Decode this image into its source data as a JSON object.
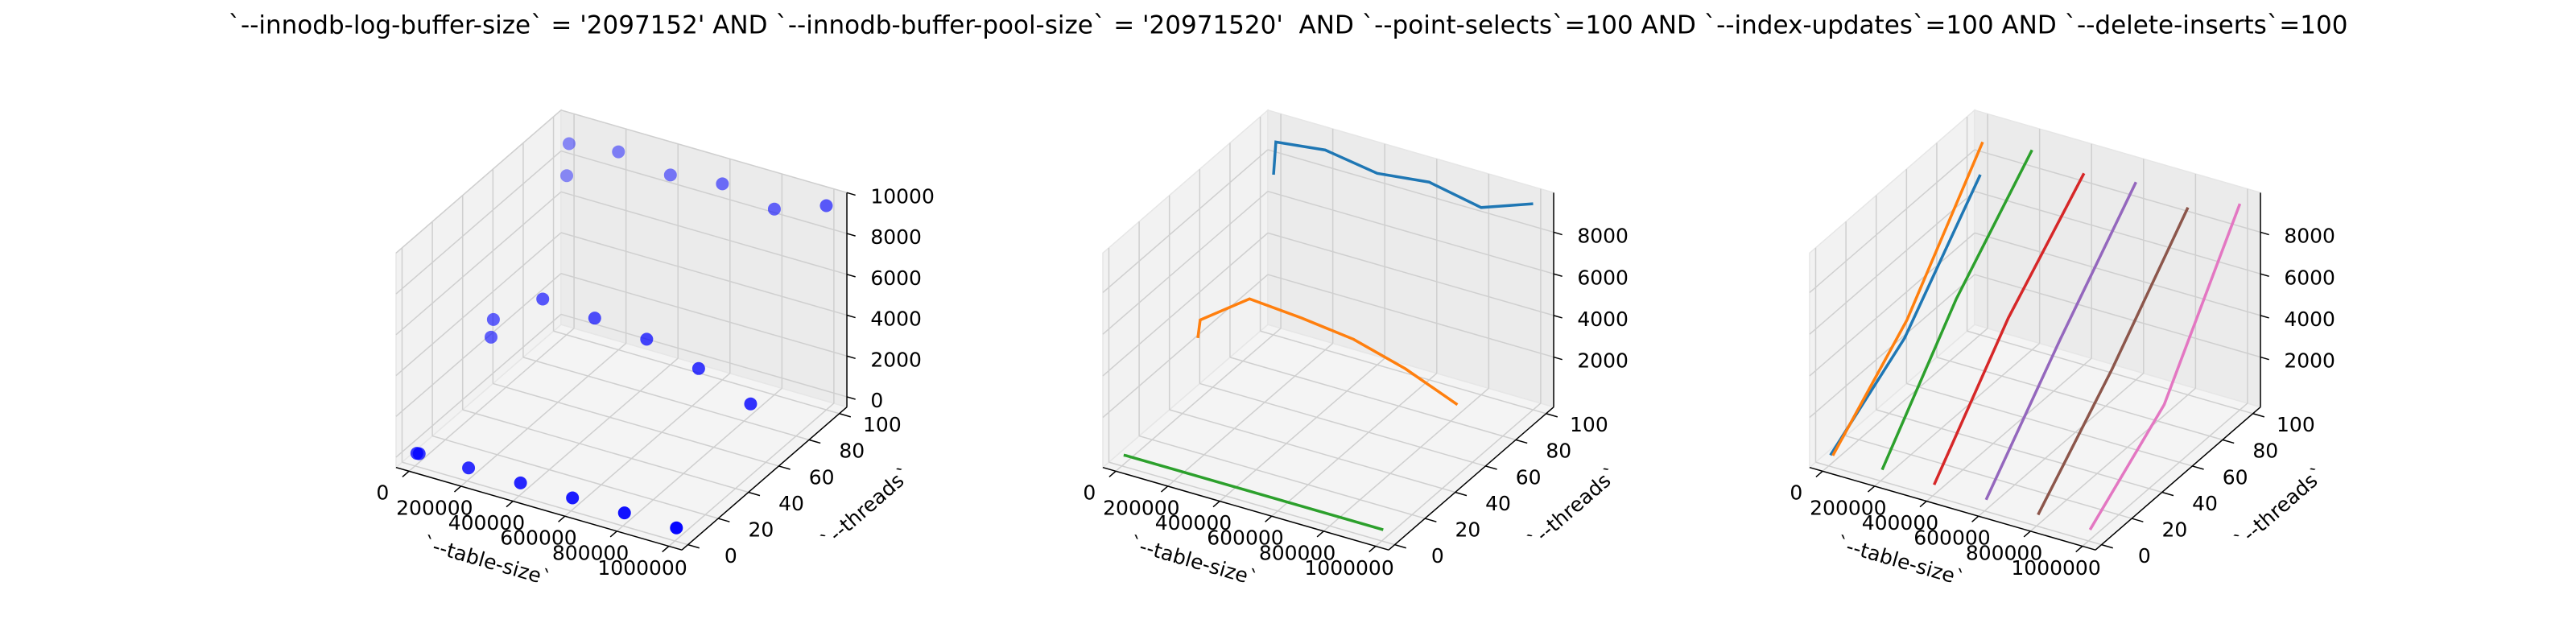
{
  "title": "`--innodb-log-buffer-size` = '2097152' AND `--innodb-buffer-pool-size` = '20971520'  AND `--point-selects`=100 AND `--index-updates`=100 AND `--delete-inserts`=100",
  "chart_data": [
    {
      "type": "scatter",
      "xlabel": "`--table-size`",
      "ylabel": "`--threads`",
      "color": "#0000ff",
      "x": [
        1000,
        10000,
        200000,
        400000,
        600000,
        800000,
        1000000,
        1000,
        10000,
        200000,
        400000,
        600000,
        800000,
        1000000,
        1000,
        10000,
        200000,
        400000,
        600000,
        800000,
        1000000
      ],
      "y": [
        1,
        1,
        1,
        1,
        1,
        1,
        1,
        50,
        50,
        50,
        50,
        50,
        50,
        50,
        100,
        100,
        100,
        100,
        100,
        100,
        100
      ],
      "z": [
        60,
        70,
        75,
        75,
        75,
        75,
        75,
        2600,
        3500,
        5200,
        5000,
        4700,
        4000,
        3000,
        7300,
        8900,
        9200,
        8800,
        9100,
        8600,
        9500
      ],
      "xlim": [
        -50000,
        1050000
      ],
      "ylim": [
        -4,
        105
      ],
      "zlim": [
        -500,
        10000
      ],
      "xticks": [
        0,
        200000,
        400000,
        600000,
        800000,
        1000000
      ],
      "yticks": [
        0,
        20,
        40,
        60,
        80,
        100
      ],
      "zticks": [
        0,
        2000,
        4000,
        6000,
        8000,
        10000
      ]
    },
    {
      "type": "line",
      "xlabel": "`--table-size`",
      "ylabel": "`--threads`",
      "series": [
        {
          "color": "#1f77b4",
          "x": [
            1000,
            10000,
            200000,
            400000,
            600000,
            800000,
            1000000
          ],
          "y": [
            100,
            100,
            100,
            100,
            100,
            100,
            100
          ],
          "z": [
            7300,
            8900,
            9200,
            8800,
            9100,
            8600,
            9500
          ]
        },
        {
          "color": "#ff7f0e",
          "x": [
            1000,
            10000,
            200000,
            400000,
            600000,
            800000,
            1000000
          ],
          "y": [
            50,
            50,
            50,
            50,
            50,
            50,
            50
          ],
          "z": [
            2600,
            3500,
            5200,
            5000,
            4700,
            4000,
            3000
          ]
        },
        {
          "color": "#2ca02c",
          "x": [
            1000,
            10000,
            200000,
            400000,
            600000,
            800000,
            1000000
          ],
          "y": [
            1,
            1,
            1,
            1,
            1,
            1,
            1
          ],
          "z": [
            60,
            70,
            75,
            75,
            75,
            75,
            75
          ]
        }
      ],
      "xlim": [
        -50000,
        1050000
      ],
      "ylim": [
        -4,
        105
      ],
      "zlim": [
        -400,
        9900
      ],
      "xticks": [
        0,
        200000,
        400000,
        600000,
        800000,
        1000000
      ],
      "yticks": [
        0,
        20,
        40,
        60,
        80,
        100
      ],
      "zticks": [
        2000,
        4000,
        6000,
        8000
      ]
    },
    {
      "type": "line",
      "xlabel": "`--table-size`",
      "ylabel": "`--threads`",
      "series": [
        {
          "color": "#1f77b4",
          "x": [
            1000,
            1000,
            1000
          ],
          "y": [
            1,
            50,
            100
          ],
          "z": [
            60,
            2600,
            7300
          ]
        },
        {
          "color": "#ff7f0e",
          "x": [
            10000,
            10000,
            10000
          ],
          "y": [
            1,
            50,
            100
          ],
          "z": [
            70,
            3500,
            8900
          ]
        },
        {
          "color": "#2ca02c",
          "x": [
            200000,
            200000,
            200000
          ],
          "y": [
            1,
            50,
            100
          ],
          "z": [
            75,
            5200,
            9200
          ]
        },
        {
          "color": "#d62728",
          "x": [
            400000,
            400000,
            400000
          ],
          "y": [
            1,
            50,
            100
          ],
          "z": [
            75,
            5000,
            8800
          ]
        },
        {
          "color": "#9467bd",
          "x": [
            600000,
            600000,
            600000
          ],
          "y": [
            1,
            50,
            100
          ],
          "z": [
            75,
            4700,
            9100
          ]
        },
        {
          "color": "#8c564b",
          "x": [
            800000,
            800000,
            800000
          ],
          "y": [
            1,
            50,
            100
          ],
          "z": [
            75,
            4000,
            8600
          ]
        },
        {
          "color": "#e377c2",
          "x": [
            1000000,
            1000000,
            1000000
          ],
          "y": [
            1,
            50,
            100
          ],
          "z": [
            75,
            3000,
            9500
          ]
        }
      ],
      "xlim": [
        -50000,
        1050000
      ],
      "ylim": [
        -4,
        105
      ],
      "zlim": [
        -400,
        9900
      ],
      "xticks": [
        0,
        200000,
        400000,
        600000,
        800000,
        1000000
      ],
      "yticks": [
        0,
        20,
        40,
        60,
        80,
        100
      ],
      "zticks": [
        2000,
        4000,
        6000,
        8000
      ]
    }
  ]
}
